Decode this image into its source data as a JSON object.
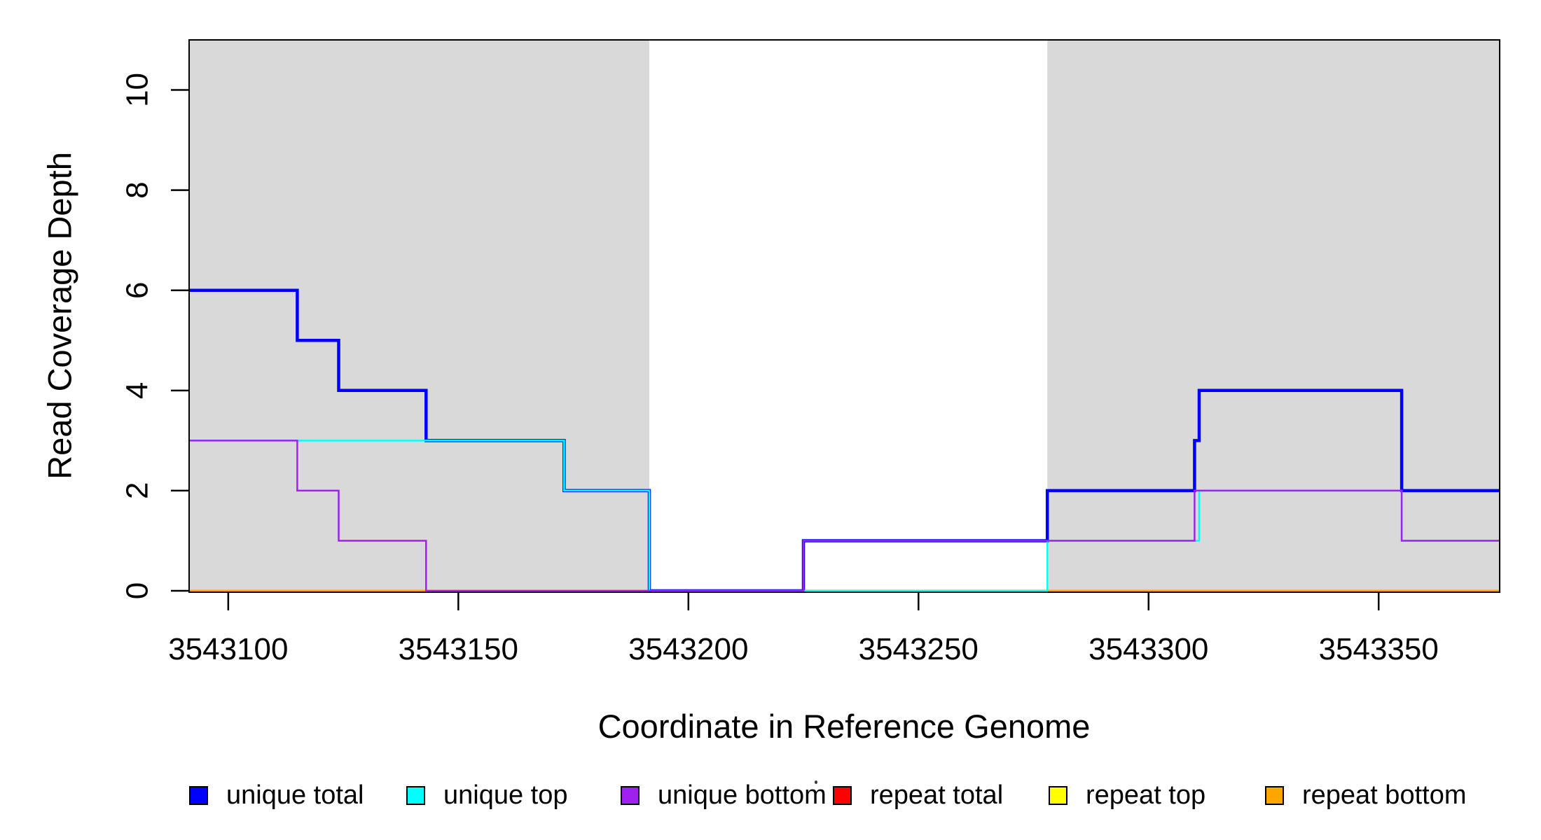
{
  "figure": {
    "x_axis_title": "Coordinate in Reference Genome",
    "y_axis_title": "Read Coverage Depth"
  },
  "colors": {
    "unique_total": "#0000FF",
    "unique_top": "#00FFFF",
    "unique_bottom": "#A020F0",
    "repeat_total": "#FF0000",
    "repeat_top": "#FFFF00",
    "repeat_bottom": "#FFA500",
    "repeat_region_shading": "#D9D9D9",
    "axis": "#000000"
  },
  "legend": {
    "items": [
      {
        "label": "unique total",
        "color": "#0000FF"
      },
      {
        "label": "unique top",
        "color": "#00FFFF"
      },
      {
        "label": "unique bottom",
        "color": "#A020F0"
      },
      {
        "label": "repeat total",
        "color": "#FF0000"
      },
      {
        "label": "repeat top",
        "color": "#FFFF00"
      },
      {
        "label": "repeat bottom",
        "color": "#FFA500"
      }
    ]
  },
  "chart_data": {
    "type": "line",
    "subtype": "step-after-coverage",
    "title": "",
    "xlabel": "Coordinate in Reference Genome",
    "ylabel": "Read Coverage Depth",
    "xlim": [
      3543091.5,
      3543376.3
    ],
    "ylim": [
      0,
      11
    ],
    "x_ticks": [
      3543100,
      3543150,
      3543200,
      3543250,
      3543300,
      3543350
    ],
    "x_tick_labels": [
      "3543100",
      "3543150",
      "3543200",
      "3543250",
      "3543300",
      "3543350"
    ],
    "y_ticks": [
      0,
      2,
      4,
      6,
      8,
      10
    ],
    "y_tick_labels": [
      "0",
      "2",
      "4",
      "6",
      "8",
      "10"
    ],
    "grid": false,
    "legend_position": "bottom",
    "shaded_repeat_regions": [
      [
        3543091.5,
        3543191.5
      ],
      [
        3543278.0,
        3543376.3
      ]
    ],
    "series": [
      {
        "name": "repeat total",
        "color": "#FF0000",
        "width": 3,
        "steps": [
          [
            3543091.5,
            0
          ]
        ]
      },
      {
        "name": "repeat top",
        "color": "#FFFF00",
        "width": 3,
        "steps": [
          [
            3543091.5,
            0
          ]
        ]
      },
      {
        "name": "repeat bottom",
        "color": "#FFA500",
        "width": 3,
        "steps": [
          [
            3543091.5,
            0
          ]
        ]
      },
      {
        "name": "unique total",
        "color": "#0000FF",
        "width": 4.5,
        "steps": [
          [
            3543091.5,
            6
          ],
          [
            3543115,
            5
          ],
          [
            3543124,
            4
          ],
          [
            3543143,
            3
          ],
          [
            3543173,
            2
          ],
          [
            3543191.5,
            0
          ],
          [
            3543225,
            1
          ],
          [
            3543278,
            2
          ],
          [
            3543310,
            3
          ],
          [
            3543311,
            4
          ],
          [
            3543355,
            2
          ]
        ]
      },
      {
        "name": "unique top",
        "color": "#00FFFF",
        "width": 2.5,
        "steps": [
          [
            3543091.5,
            3
          ],
          [
            3543173,
            2
          ],
          [
            3543191.5,
            0
          ],
          [
            3543278,
            1
          ],
          [
            3543311,
            2
          ],
          [
            3543355,
            1
          ]
        ]
      },
      {
        "name": "unique bottom",
        "color": "#A020F0",
        "width": 2.5,
        "steps": [
          [
            3543091.5,
            3
          ],
          [
            3543115,
            2
          ],
          [
            3543124,
            1
          ],
          [
            3543143,
            0
          ],
          [
            3543225,
            1
          ],
          [
            3543310,
            2
          ],
          [
            3543355,
            1
          ]
        ]
      }
    ]
  }
}
